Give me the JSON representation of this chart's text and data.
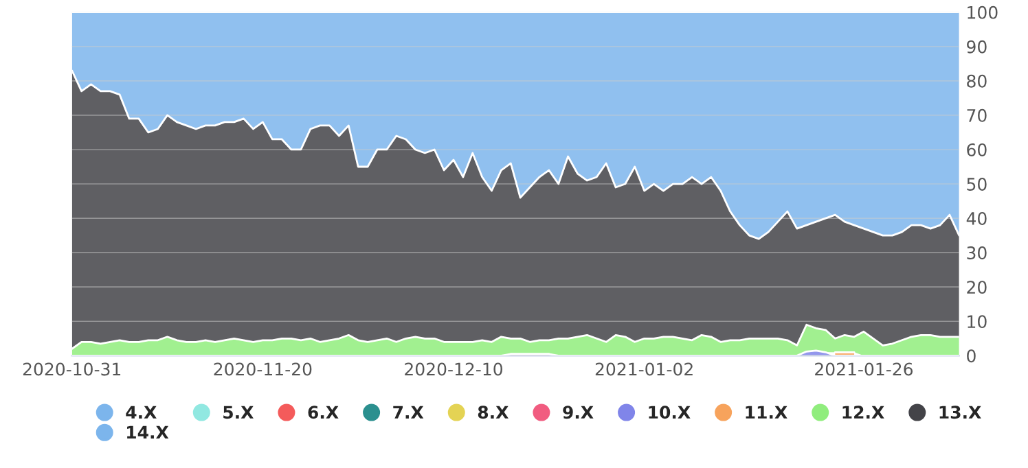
{
  "chart_data": {
    "type": "area",
    "stacked": true,
    "categories": [
      "2020-10-31",
      null,
      null,
      null,
      null,
      null,
      null,
      null,
      null,
      null,
      null,
      null,
      null,
      null,
      null,
      null,
      null,
      null,
      null,
      null,
      "2020-11-20",
      null,
      null,
      null,
      null,
      null,
      null,
      null,
      null,
      null,
      null,
      null,
      null,
      null,
      null,
      null,
      null,
      null,
      null,
      null,
      "2020-12-10",
      null,
      null,
      null,
      null,
      null,
      null,
      null,
      null,
      null,
      null,
      null,
      null,
      null,
      null,
      null,
      null,
      null,
      null,
      null,
      "2021-01-02",
      null,
      null,
      null,
      null,
      null,
      null,
      null,
      null,
      null,
      null,
      null,
      null,
      null,
      null,
      null,
      null,
      null,
      null,
      null,
      null,
      null,
      null,
      "2021-01-26",
      null,
      null,
      null,
      null,
      null,
      null,
      null,
      null,
      null,
      null
    ],
    "series": [
      {
        "name": "4.X",
        "color": "#7cb5ec",
        "values": [
          null,
          null,
          null,
          null,
          null,
          null,
          null,
          null,
          null,
          null,
          null,
          null,
          null,
          null,
          null,
          null,
          null,
          null,
          null,
          null,
          null,
          null,
          null,
          null,
          null,
          null,
          null,
          null,
          null,
          null,
          null,
          null,
          null,
          null,
          null,
          null,
          null,
          null,
          null,
          null,
          null,
          null,
          null,
          null,
          null,
          null,
          null,
          null,
          null,
          null,
          null,
          null,
          null,
          null,
          null,
          null,
          null,
          null,
          null,
          null,
          null,
          null,
          null,
          null,
          null,
          null,
          null,
          null,
          null,
          null,
          null,
          null,
          null,
          null,
          null,
          null,
          null,
          null,
          null,
          null,
          null,
          null,
          null,
          null,
          null,
          null,
          null,
          null,
          null,
          null,
          null,
          null,
          null,
          null
        ]
      },
      {
        "name": "5.X",
        "color": "#91e8e1",
        "values": [
          null,
          null,
          null,
          null,
          null,
          null,
          null,
          null,
          null,
          null,
          null,
          null,
          null,
          null,
          null,
          null,
          null,
          null,
          null,
          null,
          null,
          null,
          null,
          null,
          null,
          null,
          null,
          null,
          null,
          null,
          null,
          null,
          null,
          null,
          null,
          null,
          null,
          null,
          null,
          null,
          null,
          null,
          null,
          null,
          null,
          null,
          null,
          null,
          null,
          null,
          null,
          null,
          null,
          null,
          null,
          null,
          null,
          null,
          null,
          null,
          null,
          null,
          null,
          null,
          null,
          null,
          null,
          null,
          null,
          null,
          null,
          null,
          null,
          null,
          null,
          null,
          null,
          null,
          null,
          null,
          null,
          null,
          null,
          null,
          null,
          null,
          null,
          null,
          null,
          null,
          null,
          null,
          null,
          null
        ]
      },
      {
        "name": "6.X",
        "color": "#f45b5b",
        "values": [
          null,
          null,
          null,
          null,
          null,
          null,
          null,
          null,
          null,
          null,
          null,
          null,
          null,
          null,
          null,
          null,
          null,
          null,
          null,
          null,
          null,
          null,
          null,
          null,
          null,
          null,
          null,
          null,
          null,
          null,
          null,
          null,
          null,
          null,
          null,
          null,
          null,
          null,
          null,
          null,
          null,
          null,
          null,
          null,
          null,
          null,
          null,
          null,
          null,
          null,
          null,
          null,
          null,
          null,
          null,
          null,
          null,
          null,
          null,
          null,
          null,
          null,
          null,
          null,
          null,
          null,
          null,
          null,
          null,
          null,
          null,
          null,
          null,
          null,
          null,
          null,
          null,
          null,
          null,
          null,
          null,
          null,
          null,
          null,
          null,
          null,
          null,
          null,
          null,
          null,
          null,
          null,
          null,
          null
        ]
      },
      {
        "name": "7.X",
        "color": "#2b908f",
        "values": [
          null,
          null,
          null,
          null,
          null,
          null,
          null,
          null,
          null,
          null,
          null,
          null,
          null,
          null,
          null,
          null,
          null,
          null,
          null,
          null,
          null,
          null,
          null,
          null,
          null,
          null,
          null,
          null,
          null,
          null,
          null,
          null,
          null,
          null,
          null,
          null,
          null,
          null,
          null,
          null,
          null,
          null,
          null,
          null,
          null,
          null,
          null,
          null,
          null,
          null,
          null,
          null,
          null,
          null,
          null,
          null,
          null,
          null,
          null,
          null,
          null,
          null,
          null,
          null,
          null,
          null,
          null,
          null,
          null,
          null,
          null,
          null,
          null,
          null,
          null,
          null,
          null,
          null,
          null,
          null,
          null,
          null,
          null,
          null,
          null,
          null,
          null,
          null,
          null,
          null,
          null,
          null,
          null,
          null
        ]
      },
      {
        "name": "8.X",
        "color": "#e4d354",
        "values": [
          null,
          null,
          null,
          null,
          null,
          null,
          null,
          null,
          null,
          null,
          null,
          null,
          null,
          null,
          null,
          null,
          null,
          null,
          null,
          null,
          null,
          null,
          null,
          null,
          null,
          null,
          null,
          null,
          null,
          null,
          null,
          null,
          null,
          null,
          null,
          null,
          null,
          null,
          null,
          null,
          null,
          null,
          null,
          null,
          null,
          null,
          null,
          null,
          null,
          null,
          null,
          null,
          null,
          null,
          null,
          null,
          null,
          null,
          null,
          null,
          null,
          null,
          null,
          null,
          null,
          null,
          null,
          null,
          null,
          null,
          null,
          null,
          null,
          null,
          null,
          null,
          null,
          null,
          null,
          null,
          null,
          null,
          null,
          null,
          null,
          null,
          null,
          null,
          null,
          null,
          null,
          null,
          null,
          null
        ]
      },
      {
        "name": "9.X",
        "color": "#f15c80",
        "values": [
          null,
          null,
          null,
          null,
          null,
          null,
          null,
          null,
          null,
          null,
          null,
          null,
          null,
          null,
          null,
          null,
          null,
          null,
          null,
          null,
          null,
          null,
          null,
          null,
          null,
          null,
          null,
          null,
          null,
          null,
          null,
          null,
          null,
          null,
          null,
          null,
          null,
          null,
          null,
          null,
          null,
          null,
          null,
          null,
          null,
          null,
          0.5,
          0.5,
          0.5,
          0.5,
          0.5,
          null,
          null,
          null,
          null,
          null,
          null,
          null,
          null,
          null,
          null,
          null,
          null,
          null,
          null,
          null,
          null,
          null,
          null,
          null,
          null,
          null,
          null,
          null,
          null,
          null,
          null,
          null,
          null,
          null,
          null,
          null,
          null,
          null,
          null,
          null,
          null,
          null,
          null,
          null,
          null,
          null,
          null,
          null
        ]
      },
      {
        "name": "10.X",
        "color": "#8085e9",
        "values": [
          0,
          0,
          0,
          0,
          0,
          0,
          0,
          0,
          0,
          0,
          0,
          0,
          0,
          0,
          0,
          0,
          0,
          0,
          0,
          0,
          0,
          0,
          0,
          0,
          0,
          0,
          0,
          0,
          0,
          0,
          0,
          0,
          0,
          0,
          0,
          0,
          0,
          0,
          0,
          0,
          0,
          0,
          0,
          0,
          0,
          0,
          0,
          0,
          0,
          0,
          0,
          0,
          0,
          0,
          0,
          0,
          0,
          0,
          0,
          0,
          0,
          0,
          0,
          0,
          0,
          0,
          0,
          0,
          0,
          0,
          0,
          0,
          0,
          0,
          0,
          0,
          0,
          1.2,
          1.5,
          1.0,
          0,
          0,
          0,
          0,
          0,
          0,
          0,
          0,
          0,
          0,
          0,
          0,
          0,
          0
        ]
      },
      {
        "name": "11.X",
        "color": "#f7a35c",
        "values": [
          null,
          null,
          null,
          null,
          null,
          null,
          null,
          null,
          null,
          null,
          null,
          null,
          null,
          null,
          null,
          null,
          null,
          null,
          null,
          null,
          null,
          null,
          null,
          null,
          null,
          null,
          null,
          null,
          null,
          null,
          null,
          null,
          null,
          null,
          null,
          null,
          null,
          null,
          null,
          null,
          null,
          null,
          null,
          null,
          null,
          null,
          null,
          null,
          null,
          null,
          null,
          null,
          null,
          null,
          null,
          null,
          null,
          null,
          null,
          null,
          null,
          null,
          null,
          null,
          null,
          null,
          null,
          null,
          null,
          null,
          null,
          null,
          null,
          null,
          null,
          null,
          null,
          null,
          null,
          null,
          1,
          1,
          1,
          null,
          null,
          null,
          null,
          null,
          null,
          null,
          null,
          null,
          null,
          null
        ]
      },
      {
        "name": "12.X",
        "color": "#90ed7d",
        "values": [
          2,
          4,
          4,
          3.5,
          4,
          4.5,
          4,
          4,
          4.5,
          4.5,
          5.5,
          4.5,
          4,
          4,
          4.5,
          4,
          4.5,
          5,
          4.5,
          4,
          4.5,
          4.5,
          5,
          5,
          4.5,
          5,
          4,
          4.5,
          5,
          6,
          4.5,
          4,
          4.5,
          5,
          4,
          5,
          5.5,
          5,
          5,
          4,
          4,
          4,
          4,
          4.5,
          4,
          5.5,
          4.5,
          4.5,
          3.5,
          4,
          4,
          5,
          5,
          5.5,
          6,
          5,
          4,
          6,
          5.5,
          4,
          5,
          5,
          5.5,
          5.5,
          5,
          4.5,
          6,
          5.5,
          4,
          4.5,
          4.5,
          5,
          5,
          5,
          5,
          4.5,
          3,
          7.8,
          6.5,
          6.5,
          4,
          5,
          4.5,
          7,
          5,
          3,
          3.5,
          4.5,
          5.5,
          6,
          6,
          5.5,
          5.5,
          5.5
        ]
      },
      {
        "name": "13.X",
        "color": "#434348",
        "values": [
          81,
          73,
          75,
          73.5,
          73,
          71.5,
          65,
          65,
          60.5,
          61.5,
          64.5,
          63.5,
          63,
          62,
          62.5,
          63,
          63.5,
          63,
          64.5,
          62,
          63.5,
          58.5,
          58,
          55,
          55.5,
          61,
          63,
          62.5,
          59,
          61,
          50.5,
          51,
          55.5,
          55,
          60,
          58,
          54.5,
          54,
          55,
          50,
          53,
          48,
          55,
          47.5,
          44,
          48.5,
          51,
          41,
          45,
          47.5,
          49.5,
          45,
          53,
          47.5,
          45,
          47,
          52,
          43,
          44.5,
          51,
          43,
          45,
          42.5,
          44.5,
          45,
          47.5,
          44,
          46.5,
          44,
          37.5,
          33.5,
          30,
          29,
          31,
          34,
          37.5,
          34,
          29,
          31,
          32.5,
          36,
          33,
          32.5,
          30,
          31,
          32,
          31.5,
          31.5,
          32.5,
          32,
          31,
          32.5,
          35.5,
          29.5
        ]
      },
      {
        "name": "14.X",
        "color": "#7cb5ec",
        "values": [
          17,
          23,
          21,
          23,
          23,
          24,
          31,
          31,
          35,
          34,
          30,
          32,
          33,
          34,
          33,
          33,
          32,
          32,
          31,
          34,
          32,
          37,
          37,
          40,
          40,
          34,
          33,
          33,
          36,
          33,
          45,
          45,
          40,
          40,
          36,
          37,
          40,
          41,
          40,
          46,
          43,
          48,
          41,
          48,
          52,
          46,
          44,
          54,
          51,
          48,
          46,
          50,
          42,
          47,
          49,
          48,
          44,
          51,
          50,
          45,
          52,
          50,
          52,
          50,
          50,
          48,
          50,
          48,
          52,
          58,
          62,
          65,
          66,
          64,
          61,
          58,
          63,
          62,
          61,
          60,
          59,
          61,
          62,
          63,
          64,
          65,
          65,
          64,
          62,
          62,
          63,
          62,
          59,
          65
        ]
      }
    ],
    "ylim": [
      0,
      100
    ],
    "yticks": [
      0,
      10,
      20,
      30,
      40,
      50,
      60,
      70,
      80,
      90,
      100
    ],
    "grid": "y",
    "legend": "bottom"
  }
}
